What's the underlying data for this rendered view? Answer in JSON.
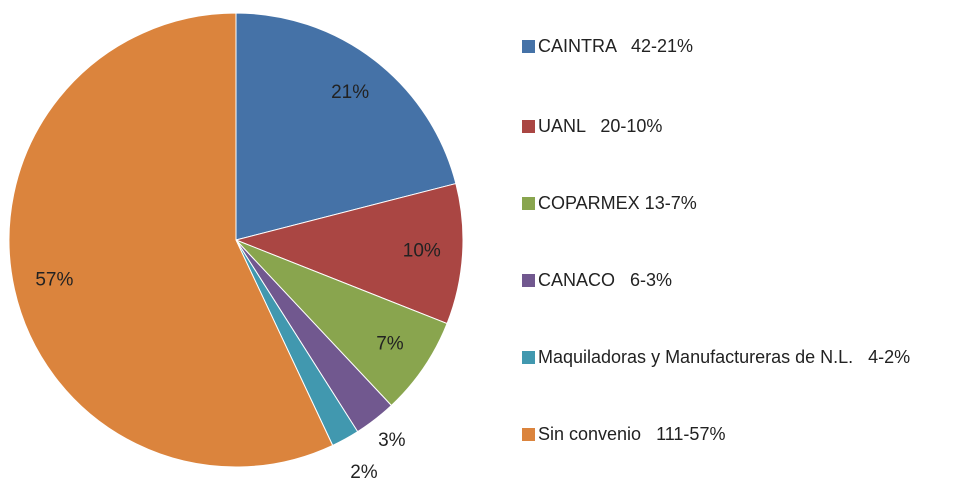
{
  "chart_data": {
    "type": "pie",
    "categories": [
      "CAINTRA   42-21%",
      "UANL   20-10%",
      "COPARMEX 13-7%",
      "CANACO   6-3%",
      "Maquiladoras y Manufactureras de N.L.   4-2%",
      "Sin convenio   111-57%"
    ],
    "values": [
      21,
      10,
      7,
      3,
      2,
      57
    ],
    "value_labels": [
      "21%",
      "10%",
      "7%",
      "3%",
      "2%",
      "57%"
    ],
    "colors": [
      "#4572a7",
      "#aa4643",
      "#89a54e",
      "#71588f",
      "#4198af",
      "#db843d"
    ],
    "legend": "right"
  }
}
